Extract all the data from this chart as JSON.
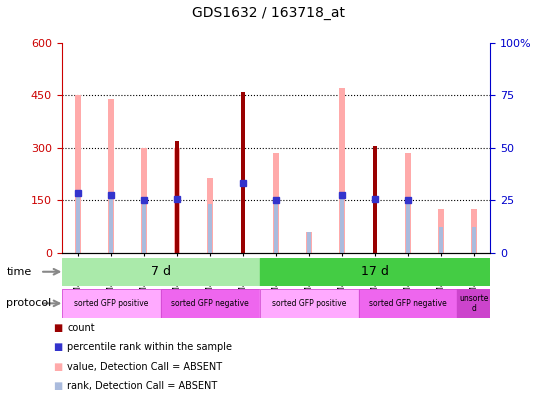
{
  "title": "GDS1632 / 163718_at",
  "samples": [
    "GSM43189",
    "GSM43203",
    "GSM43210",
    "GSM43186",
    "GSM43200",
    "GSM43207",
    "GSM43196",
    "GSM43217",
    "GSM43226",
    "GSM43193",
    "GSM43214",
    "GSM43223",
    "GSM43220"
  ],
  "count_values": [
    0,
    0,
    0,
    320,
    0,
    460,
    0,
    0,
    0,
    305,
    0,
    0,
    0
  ],
  "percentile_rank": [
    170,
    165,
    152,
    155,
    0,
    200,
    152,
    0,
    165,
    155,
    152,
    0,
    0
  ],
  "value_absent": [
    450,
    440,
    300,
    300,
    215,
    0,
    285,
    60,
    470,
    0,
    285,
    125,
    125
  ],
  "rank_absent": [
    170,
    165,
    152,
    0,
    140,
    0,
    152,
    60,
    165,
    0,
    152,
    75,
    75
  ],
  "ylim_left": [
    0,
    600
  ],
  "ylim_right": [
    0,
    100
  ],
  "yticks_left": [
    0,
    150,
    300,
    450,
    600
  ],
  "yticks_right": [
    0,
    25,
    50,
    75,
    100
  ],
  "ytick_labels_left": [
    "0",
    "150",
    "300",
    "450",
    "600"
  ],
  "ytick_labels_right": [
    "0",
    "25",
    "50",
    "75",
    "100%"
  ],
  "time_groups": [
    {
      "label": "7 d",
      "start": 0,
      "end": 6,
      "color": "#aaeaaa"
    },
    {
      "label": "17 d",
      "start": 6,
      "end": 13,
      "color": "#44cc44"
    }
  ],
  "protocol_groups": [
    {
      "label": "sorted GFP positive",
      "start": 0,
      "end": 3,
      "color": "#ffaaff"
    },
    {
      "label": "sorted GFP negative",
      "start": 3,
      "end": 6,
      "color": "#ee66ee"
    },
    {
      "label": "sorted GFP positive",
      "start": 6,
      "end": 9,
      "color": "#ffaaff"
    },
    {
      "label": "sorted GFP negative",
      "start": 9,
      "end": 12,
      "color": "#ee66ee"
    },
    {
      "label": "unsorte\nd",
      "start": 12,
      "end": 13,
      "color": "#cc44cc"
    }
  ],
  "color_count": "#990000",
  "color_percentile": "#3333cc",
  "color_value_absent": "#ffaaaa",
  "color_rank_absent": "#aabbdd",
  "bg_color": "#ffffff",
  "plot_bg_color": "#ffffff",
  "left_tick_color": "#cc0000",
  "right_tick_color": "#0000cc"
}
